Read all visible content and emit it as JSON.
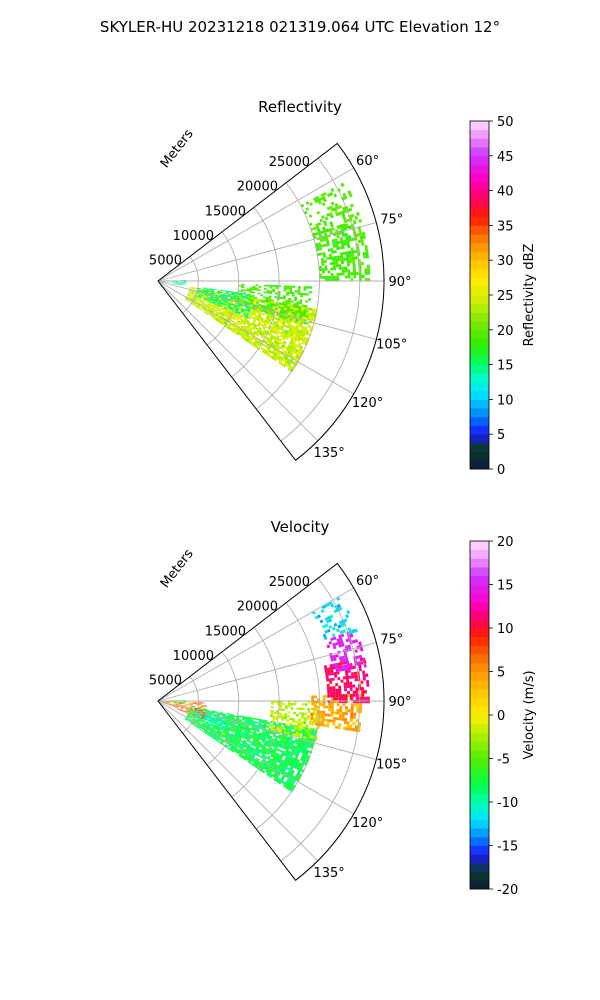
{
  "figure": {
    "title": "SKYLER-HU  20231218  021319.064 UTC Elevation 12°"
  },
  "chart_data": [
    {
      "type": "heatmap",
      "subtype": "polar-sector-ppi",
      "title": "Reflectivity",
      "range_label": "Meters",
      "range_ticks": [
        5000,
        10000,
        15000,
        20000,
        25000
      ],
      "range_max": 28000,
      "azimuth_range_deg": [
        52.5,
        142.5
      ],
      "azimuth_ticks": [
        60,
        75,
        90,
        105,
        120,
        135
      ],
      "azimuth_tick_labels": [
        "60°",
        "75°",
        "90°",
        "105°",
        "120°",
        "135°"
      ],
      "grid": true,
      "colorbar": {
        "label": "Reflectivity dBZ",
        "min": 0,
        "max": 50,
        "ticks": [
          0,
          5,
          10,
          15,
          20,
          25,
          30,
          35,
          40,
          45,
          50
        ],
        "stops": [
          {
            "v": 0,
            "c": "#0a1a3a"
          },
          {
            "v": 3,
            "c": "#0c3a2c"
          },
          {
            "v": 5,
            "c": "#1a1aff"
          },
          {
            "v": 7,
            "c": "#0066ff"
          },
          {
            "v": 9,
            "c": "#00b0ff"
          },
          {
            "v": 11,
            "c": "#00e5ff"
          },
          {
            "v": 13,
            "c": "#00ffcc"
          },
          {
            "v": 15,
            "c": "#00ff66"
          },
          {
            "v": 18,
            "c": "#33ee00"
          },
          {
            "v": 21,
            "c": "#77e800"
          },
          {
            "v": 24,
            "c": "#c8f000"
          },
          {
            "v": 27,
            "c": "#ffee00"
          },
          {
            "v": 30,
            "c": "#ffc000"
          },
          {
            "v": 33,
            "c": "#ff8000"
          },
          {
            "v": 36,
            "c": "#ff2000"
          },
          {
            "v": 39,
            "c": "#ff0060"
          },
          {
            "v": 42,
            "c": "#ff00cc"
          },
          {
            "v": 45,
            "c": "#cc33ff"
          },
          {
            "v": 48,
            "c": "#ee99ff"
          },
          {
            "v": 50,
            "c": "#ffe0ff"
          }
        ]
      },
      "echo_regions": [
        {
          "az": [
            100,
            124
          ],
          "r": [
            4000,
            20000
          ],
          "value": 24,
          "spread": 4,
          "density": 0.85
        },
        {
          "az": [
            98,
            112
          ],
          "r": [
            5000,
            12000
          ],
          "value": 15,
          "spread": 3,
          "density": 0.6
        },
        {
          "az": [
            92,
            106
          ],
          "r": [
            10000,
            19000
          ],
          "value": 19,
          "spread": 3,
          "density": 0.45
        },
        {
          "az": [
            73,
            90
          ],
          "r": [
            20000,
            26000
          ],
          "value": 19,
          "spread": 3,
          "density": 0.55
        },
        {
          "az": [
            62,
            75
          ],
          "r": [
            20000,
            26000
          ],
          "value": 19,
          "spread": 3,
          "density": 0.35
        },
        {
          "az": [
            88,
            100
          ],
          "r": [
            0,
            3500
          ],
          "value": 14,
          "spread": 3,
          "density": 0.5
        }
      ]
    },
    {
      "type": "heatmap",
      "subtype": "polar-sector-ppi",
      "title": "Velocity",
      "range_label": "Meters",
      "range_ticks": [
        5000,
        10000,
        15000,
        20000,
        25000
      ],
      "range_max": 28000,
      "azimuth_range_deg": [
        52.5,
        142.5
      ],
      "azimuth_ticks": [
        60,
        75,
        90,
        105,
        120,
        135
      ],
      "azimuth_tick_labels": [
        "60°",
        "75°",
        "90°",
        "105°",
        "120°",
        "135°"
      ],
      "grid": true,
      "colorbar": {
        "label": "Velocity (m/s)",
        "min": -20,
        "max": 20,
        "ticks": [
          -20,
          -15,
          -10,
          -5,
          0,
          5,
          10,
          15,
          20
        ],
        "stops": [
          {
            "v": -20,
            "c": "#0a1a3a"
          },
          {
            "v": -18,
            "c": "#0c3a2c"
          },
          {
            "v": -16,
            "c": "#1a1aff"
          },
          {
            "v": -14,
            "c": "#0088ff"
          },
          {
            "v": -12,
            "c": "#00e5ff"
          },
          {
            "v": -10,
            "c": "#00ffb0"
          },
          {
            "v": -8,
            "c": "#00ff44"
          },
          {
            "v": -5,
            "c": "#55ee00"
          },
          {
            "v": -2,
            "c": "#b8f000"
          },
          {
            "v": 0,
            "c": "#ffee00"
          },
          {
            "v": 3,
            "c": "#ffc000"
          },
          {
            "v": 6,
            "c": "#ff8000"
          },
          {
            "v": 9,
            "c": "#ff2000"
          },
          {
            "v": 11,
            "c": "#ff0060"
          },
          {
            "v": 13,
            "c": "#ff00cc"
          },
          {
            "v": 16,
            "c": "#cc33ff"
          },
          {
            "v": 18,
            "c": "#ee99ff"
          },
          {
            "v": 20,
            "c": "#ffe0ff"
          }
        ]
      },
      "echo_regions": [
        {
          "az": [
            100,
            124
          ],
          "r": [
            4000,
            20000
          ],
          "value": -8,
          "spread": 3,
          "density": 0.85
        },
        {
          "az": [
            104,
            112
          ],
          "r": [
            5000,
            9000
          ],
          "value": -11,
          "spread": 2,
          "density": 0.6
        },
        {
          "az": [
            90,
            104
          ],
          "r": [
            14000,
            20000
          ],
          "value": -2,
          "spread": 3,
          "density": 0.5
        },
        {
          "az": [
            88,
            98
          ],
          "r": [
            19000,
            25000
          ],
          "value": 4,
          "spread": 3,
          "density": 0.6
        },
        {
          "az": [
            78,
            90
          ],
          "r": [
            21000,
            26000
          ],
          "value": 11,
          "spread": 3,
          "density": 0.6
        },
        {
          "az": [
            70,
            80
          ],
          "r": [
            22000,
            26000
          ],
          "value": 15,
          "spread": 2,
          "density": 0.5
        },
        {
          "az": [
            60,
            70
          ],
          "r": [
            22000,
            26000
          ],
          "value": -12,
          "spread": 3,
          "density": 0.35
        },
        {
          "az": [
            92,
            112
          ],
          "r": [
            500,
            6000
          ],
          "value": 6,
          "spread": 8,
          "density": 0.45
        },
        {
          "az": [
            88,
            96
          ],
          "r": [
            0,
            3500
          ],
          "value": -5,
          "spread": 3,
          "density": 0.5
        }
      ]
    }
  ]
}
